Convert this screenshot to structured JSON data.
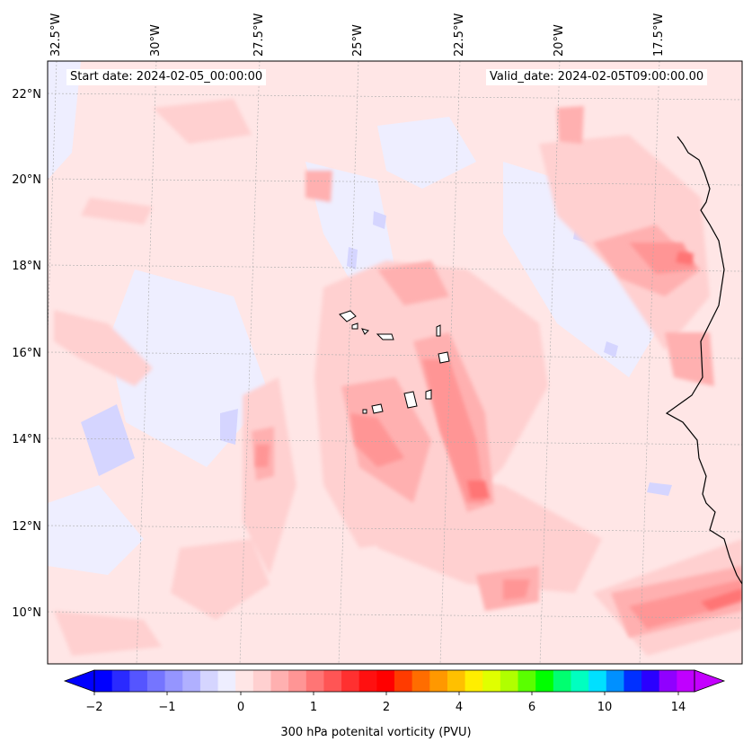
{
  "map": {
    "start_label": "Start date: 2024-02-05_00:00:00",
    "valid_label": "Valid_date: 2024-02-05T09:00:00.00",
    "field": "300 hPa potential vorticity",
    "lon_labels": [
      "32.5°W",
      "30°W",
      "27.5°W",
      "25°W",
      "22.5°W",
      "20°W",
      "17.5°W"
    ],
    "lat_labels": [
      "22°N",
      "20°N",
      "18°N",
      "16°N",
      "14°N",
      "12°N",
      "10°N"
    ],
    "grid": true,
    "islands": "Cape Verde",
    "coastline": "West Africa (Mauritania / Senegal / Guinea-Bissau)"
  },
  "colorbar": {
    "title": "300 hPa potenital vorticity (PVU)",
    "ticks": [
      "−2",
      "−1",
      "0",
      "1",
      "2",
      "4",
      "6",
      "10",
      "14"
    ],
    "extend": "both",
    "colors": [
      "#0000ff",
      "#2a2aff",
      "#5555ff",
      "#7575ff",
      "#9595ff",
      "#b0b0ff",
      "#d5d5ff",
      "#eeeeff",
      "#ffe6e6",
      "#ffd0d0",
      "#ffb0b0",
      "#ff9595",
      "#ff7575",
      "#ff5555",
      "#ff3030",
      "#ff1010",
      "#ff0000",
      "#ff3b00",
      "#ff6d00",
      "#ff9800",
      "#ffc000",
      "#ffee00",
      "#e0ff00",
      "#b0ff00",
      "#5aff00",
      "#00ff00",
      "#00ff70",
      "#00ffc0",
      "#00e0ff",
      "#0090ff",
      "#0030ff",
      "#2a00ff",
      "#9000ff",
      "#c000ff"
    ],
    "under_color": "#0000ff",
    "over_color": "#c400ff"
  }
}
